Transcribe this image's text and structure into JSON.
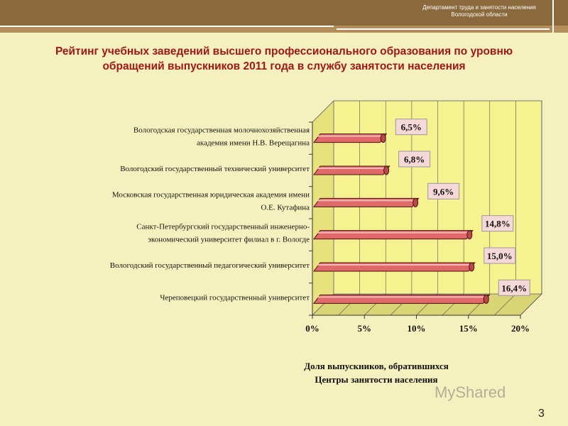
{
  "header": {
    "dept_line1": "Департамент труда и занятости населения",
    "dept_line2": "Вологодской области"
  },
  "title_line1": "Рейтинг учебных заведений высшего профессионального образования по уровню",
  "title_line2": "обращений выпускников 2011 года в службу занятости населения",
  "page_number": "3",
  "watermark": "MyShared",
  "colors": {
    "bar": "#e06a6a",
    "plot": "#f6f28f",
    "title": "#a21717"
  },
  "chart_data": {
    "type": "bar",
    "orientation": "horizontal",
    "categories": [
      [
        "Вологодская государственная молочнохозяйственная",
        "академия имени Н.В. Верещагина"
      ],
      [
        "Вологодский государственный технический университет"
      ],
      [
        "Московская государственная юридическая академия имени",
        "О.Е. Кутафина"
      ],
      [
        "Санкт-Петербургский государственный инженерно-",
        "экономический университет филиал в г. Вологде"
      ],
      [
        "Вологодский государственный педагогический университет"
      ],
      [
        "Череповецкий государственный университет"
      ]
    ],
    "values": [
      6.5,
      6.8,
      9.6,
      14.8,
      15.0,
      16.4
    ],
    "data_labels": [
      "6,5%",
      "6,8%",
      "9,6%",
      "14,8%",
      "15,0%",
      "16,4%"
    ],
    "xticks": [
      "0%",
      "5%",
      "10%",
      "15%",
      "20%"
    ],
    "xlim": [
      0,
      20
    ],
    "xlabel_line1": "Доля выпускников, обратившихся",
    "xlabel_line2": "Центры занятости населения",
    "grid": true
  }
}
